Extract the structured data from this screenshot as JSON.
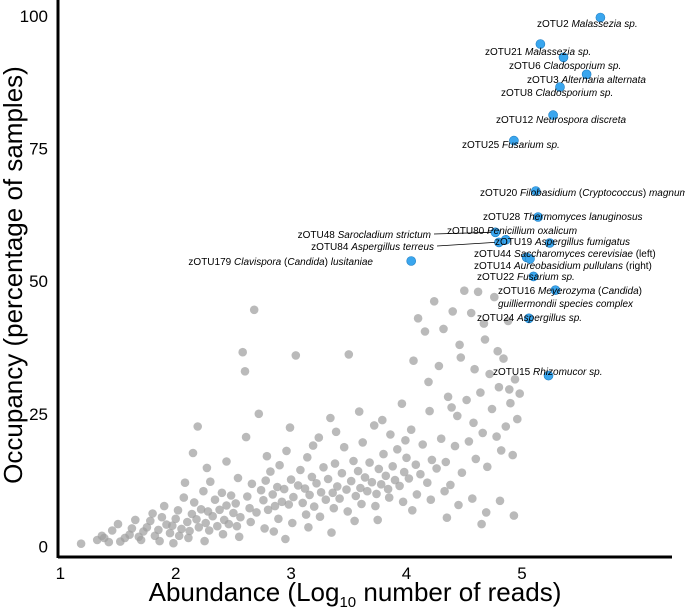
{
  "chart_data": {
    "type": "scatter",
    "xlabel": {
      "main": "Abundance (Log",
      "sub": "10",
      "rest": " number of reads)"
    },
    "ylabel": "Occupancy (percentage of samples)",
    "xlim": [
      0.98,
      6.3
    ],
    "ylim": [
      -2,
      103
    ],
    "x_ticks": [
      1,
      2,
      3,
      4,
      5
    ],
    "y_ticks": [
      0,
      25,
      50,
      75,
      100
    ],
    "colors": {
      "background_points": "#a0a0a0",
      "highlight_points": "#3aa6ee",
      "highlight_stroke": "#1f7fc4"
    },
    "background_points": [
      [
        1.18,
        0.5
      ],
      [
        1.32,
        1.2
      ],
      [
        1.36,
        2.0
      ],
      [
        1.38,
        1.6
      ],
      [
        1.45,
        3.0
      ],
      [
        1.5,
        4.2
      ],
      [
        1.52,
        0.9
      ],
      [
        1.56,
        1.6
      ],
      [
        1.6,
        2.2
      ],
      [
        1.62,
        3.4
      ],
      [
        1.65,
        5.0
      ],
      [
        1.68,
        1.8
      ],
      [
        1.72,
        2.8
      ],
      [
        1.75,
        3.6
      ],
      [
        1.78,
        4.8
      ],
      [
        1.8,
        6.2
      ],
      [
        1.82,
        2.0
      ],
      [
        1.85,
        3.1
      ],
      [
        1.88,
        5.5
      ],
      [
        1.9,
        7.6
      ],
      [
        1.92,
        4.1
      ],
      [
        1.95,
        2.5
      ],
      [
        1.97,
        3.9
      ],
      [
        2.0,
        5.2
      ],
      [
        2.02,
        6.8
      ],
      [
        2.05,
        3.3
      ],
      [
        2.07,
        9.2
      ],
      [
        2.1,
        4.6
      ],
      [
        2.12,
        2.9
      ],
      [
        2.14,
        6.1
      ],
      [
        2.16,
        8.3
      ],
      [
        2.18,
        5.1
      ],
      [
        2.2,
        3.6
      ],
      [
        2.22,
        7.0
      ],
      [
        2.24,
        10.4
      ],
      [
        2.26,
        4.4
      ],
      [
        2.28,
        6.6
      ],
      [
        2.3,
        12.2
      ],
      [
        2.32,
        5.7
      ],
      [
        2.34,
        8.8
      ],
      [
        2.36,
        3.8
      ],
      [
        2.38,
        6.9
      ],
      [
        2.4,
        10.1
      ],
      [
        2.42,
        5.0
      ],
      [
        2.44,
        7.7
      ],
      [
        2.46,
        4.2
      ],
      [
        2.48,
        9.6
      ],
      [
        2.5,
        6.3
      ],
      [
        2.52,
        8.1
      ],
      [
        2.54,
        12.9
      ],
      [
        2.56,
        5.5
      ],
      [
        2.58,
        36.6
      ],
      [
        2.6,
        33.0
      ],
      [
        2.62,
        9.4
      ],
      [
        2.64,
        7.2
      ],
      [
        2.66,
        11.8
      ],
      [
        2.68,
        44.6
      ],
      [
        2.7,
        6.4
      ],
      [
        2.72,
        25.0
      ],
      [
        2.74,
        10.6
      ],
      [
        2.76,
        8.7
      ],
      [
        2.78,
        12.4
      ],
      [
        2.8,
        6.9
      ],
      [
        2.82,
        14.1
      ],
      [
        2.84,
        9.8
      ],
      [
        2.86,
        7.6
      ],
      [
        2.88,
        11.2
      ],
      [
        2.9,
        15.3
      ],
      [
        2.92,
        8.4
      ],
      [
        2.94,
        10.8
      ],
      [
        2.96,
        18.0
      ],
      [
        2.98,
        7.9
      ],
      [
        3.0,
        12.6
      ],
      [
        3.02,
        9.3
      ],
      [
        3.04,
        36.0
      ],
      [
        3.06,
        11.5
      ],
      [
        3.08,
        14.4
      ],
      [
        3.1,
        8.2
      ],
      [
        3.12,
        10.9
      ],
      [
        3.14,
        16.8
      ],
      [
        3.16,
        9.7
      ],
      [
        3.18,
        13.1
      ],
      [
        3.2,
        7.5
      ],
      [
        3.22,
        11.9
      ],
      [
        3.24,
        20.5
      ],
      [
        3.26,
        10.2
      ],
      [
        3.28,
        14.9
      ],
      [
        3.3,
        8.8
      ],
      [
        3.32,
        12.7
      ],
      [
        3.34,
        24.2
      ],
      [
        3.36,
        10.1
      ],
      [
        3.38,
        15.6
      ],
      [
        3.4,
        11.3
      ],
      [
        3.42,
        9.0
      ],
      [
        3.44,
        13.8
      ],
      [
        3.46,
        18.7
      ],
      [
        3.48,
        10.7
      ],
      [
        3.5,
        36.2
      ],
      [
        3.52,
        12.3
      ],
      [
        3.54,
        16.1
      ],
      [
        3.56,
        9.5
      ],
      [
        3.58,
        14.2
      ],
      [
        3.6,
        11.0
      ],
      [
        3.62,
        19.6
      ],
      [
        3.64,
        13.0
      ],
      [
        3.66,
        10.4
      ],
      [
        3.68,
        15.8
      ],
      [
        3.7,
        12.1
      ],
      [
        3.72,
        22.8
      ],
      [
        3.74,
        9.9
      ],
      [
        3.76,
        14.6
      ],
      [
        3.78,
        11.7
      ],
      [
        3.8,
        17.4
      ],
      [
        3.82,
        13.3
      ],
      [
        3.84,
        10.8
      ],
      [
        3.86,
        21.1
      ],
      [
        3.88,
        15.1
      ],
      [
        3.9,
        12.5
      ],
      [
        3.92,
        18.3
      ],
      [
        3.94,
        11.4
      ],
      [
        3.96,
        26.9
      ],
      [
        3.98,
        14.0
      ],
      [
        4.0,
        16.7
      ],
      [
        4.02,
        12.8
      ],
      [
        4.04,
        22.0
      ],
      [
        4.06,
        35.0
      ],
      [
        4.08,
        15.4
      ],
      [
        4.1,
        43.0
      ],
      [
        4.12,
        13.6
      ],
      [
        4.14,
        19.2
      ],
      [
        4.16,
        40.5
      ],
      [
        4.18,
        12.0
      ],
      [
        4.2,
        25.5
      ],
      [
        4.22,
        16.3
      ],
      [
        4.24,
        46.2
      ],
      [
        4.26,
        14.7
      ],
      [
        4.28,
        34.0
      ],
      [
        4.3,
        20.3
      ],
      [
        4.32,
        41.0
      ],
      [
        4.34,
        15.9
      ],
      [
        4.36,
        28.2
      ],
      [
        4.38,
        11.6
      ],
      [
        4.4,
        44.3
      ],
      [
        4.42,
        18.9
      ],
      [
        4.44,
        24.6
      ],
      [
        4.46,
        38.0
      ],
      [
        4.48,
        13.9
      ],
      [
        4.5,
        48.2
      ],
      [
        4.52,
        27.6
      ],
      [
        4.54,
        19.8
      ],
      [
        4.56,
        44.0
      ],
      [
        4.58,
        23.3
      ],
      [
        4.6,
        16.5
      ],
      [
        4.62,
        48.0
      ],
      [
        4.64,
        29.0
      ],
      [
        4.66,
        21.4
      ],
      [
        4.68,
        39.0
      ],
      [
        4.7,
        15.0
      ],
      [
        4.72,
        32.5
      ],
      [
        4.74,
        25.9
      ],
      [
        4.76,
        47.0
      ],
      [
        4.78,
        20.7
      ],
      [
        4.8,
        30.0
      ],
      [
        4.82,
        18.1
      ],
      [
        4.84,
        35.4
      ],
      [
        4.86,
        22.6
      ],
      [
        4.88,
        42.5
      ],
      [
        4.9,
        27.0
      ],
      [
        4.92,
        17.2
      ],
      [
        4.94,
        31.5
      ],
      [
        4.96,
        24.0
      ],
      [
        4.98,
        28.8
      ],
      [
        1.42,
        0.8
      ],
      [
        1.7,
        1.2
      ],
      [
        1.86,
        1.0
      ],
      [
        2.03,
        2.0
      ],
      [
        2.11,
        1.6
      ],
      [
        2.29,
        3.0
      ],
      [
        2.41,
        2.3
      ],
      [
        2.53,
        3.8
      ],
      [
        2.65,
        4.6
      ],
      [
        2.77,
        3.4
      ],
      [
        2.89,
        5.2
      ],
      [
        3.01,
        4.4
      ],
      [
        3.13,
        6.0
      ],
      [
        3.25,
        5.6
      ],
      [
        3.37,
        7.2
      ],
      [
        3.49,
        6.6
      ],
      [
        3.61,
        8.0
      ],
      [
        3.73,
        7.6
      ],
      [
        3.85,
        9.2
      ],
      [
        3.97,
        8.4
      ],
      [
        4.09,
        9.8
      ],
      [
        4.21,
        8.8
      ],
      [
        4.33,
        10.4
      ],
      [
        4.45,
        7.8
      ],
      [
        4.57,
        9.0
      ],
      [
        4.69,
        6.4
      ],
      [
        4.81,
        8.6
      ],
      [
        4.93,
        5.8
      ],
      [
        3.55,
        4.8
      ],
      [
        3.15,
        3.6
      ],
      [
        2.85,
        2.8
      ],
      [
        2.55,
        1.8
      ],
      [
        4.05,
        6.8
      ],
      [
        4.35,
        5.4
      ],
      [
        4.65,
        4.2
      ],
      [
        3.75,
        5.0
      ],
      [
        3.35,
        2.6
      ],
      [
        2.95,
        1.4
      ],
      [
        2.25,
        1.0
      ],
      [
        1.98,
        0.6
      ],
      [
        2.08,
        12.0
      ],
      [
        2.15,
        17.6
      ],
      [
        2.19,
        22.6
      ],
      [
        2.27,
        14.8
      ],
      [
        2.44,
        16.0
      ],
      [
        2.61,
        20.6
      ],
      [
        2.79,
        17.0
      ],
      [
        2.99,
        22.4
      ],
      [
        3.19,
        19.0
      ],
      [
        3.39,
        21.6
      ],
      [
        3.59,
        25.4
      ],
      [
        3.79,
        23.8
      ],
      [
        3.99,
        20.0
      ],
      [
        4.19,
        31.0
      ],
      [
        4.39,
        26.2
      ],
      [
        4.59,
        33.4
      ],
      [
        4.79,
        36.8
      ],
      [
        4.89,
        29.6
      ],
      [
        4.67,
        42.0
      ],
      [
        4.47,
        35.6
      ]
    ],
    "highlight_points": [
      {
        "x": 5.68,
        "y": 99.7,
        "id": "zOTU2",
        "name": "Malassezia sp."
      },
      {
        "x": 5.16,
        "y": 94.7,
        "id": "zOTU21",
        "name": "Malassezia sp."
      },
      {
        "x": 5.36,
        "y": 92.2,
        "id": "zOTU6",
        "name": "Cladosporium sp."
      },
      {
        "x": 5.56,
        "y": 89.0,
        "id": "zOTU3",
        "name": "Alternaria alternata"
      },
      {
        "x": 5.33,
        "y": 86.6,
        "id": "zOTU8",
        "name": "Cladosporium sp."
      },
      {
        "x": 5.27,
        "y": 81.3,
        "id": "zOTU12",
        "name": "Neurospora discreta"
      },
      {
        "x": 4.93,
        "y": 76.5,
        "id": "zOTU25",
        "name": "Fusarium sp."
      },
      {
        "x": 5.12,
        "y": 67.0,
        "id": "zOTU20",
        "name": "Filobasidium (Cryptococcus) magnum"
      },
      {
        "x": 5.14,
        "y": 62.1,
        "id": "zOTU28",
        "name": "Thermomyces lanuginosus"
      },
      {
        "x": 4.77,
        "y": 59.2,
        "id": "zOTU48",
        "name": "Sarocladium strictum"
      },
      {
        "x": 4.86,
        "y": 57.8,
        "id": "zOTU80",
        "name": "Penicillium oxalicum"
      },
      {
        "x": 4.8,
        "y": 57.3,
        "id": "zOTU84",
        "name": "Aspergillus terreus"
      },
      {
        "x": 5.24,
        "y": 57.2,
        "id": "zOTU19",
        "name": "Aspergillus fumigatus"
      },
      {
        "x": 5.04,
        "y": 54.5,
        "id": "zOTU44",
        "name": "Saccharomyces cerevisiae (left)"
      },
      {
        "x": 5.07,
        "y": 54.2,
        "id": "zOTU14",
        "name": "Aureobasidium pullulans (right)"
      },
      {
        "x": 4.04,
        "y": 53.8,
        "id": "zOTU179",
        "name": "Clavispora (Candida) lusitaniae"
      },
      {
        "x": 5.1,
        "y": 50.9,
        "id": "zOTU22",
        "name": "Fusarium sp."
      },
      {
        "x": 5.29,
        "y": 48.3,
        "id": "zOTU16",
        "name": "Meyerozyma (Candida) guilliermondii species complex"
      },
      {
        "x": 5.06,
        "y": 43.0,
        "id": "zOTU24",
        "name": "Aspergillus sp."
      },
      {
        "x": 5.23,
        "y": 32.2,
        "id": "zOTU15",
        "name": "Rhizomucor sp."
      }
    ]
  },
  "labels": [
    {
      "text": [
        "zOTU2 ",
        {
          "i": "Malassezia sp."
        }
      ]
    },
    {
      "text": [
        "zOTU21 ",
        {
          "i": "Malassezia sp."
        }
      ]
    },
    {
      "text": [
        "zOTU6 ",
        {
          "i": "Cladosporium sp."
        }
      ]
    },
    {
      "text": [
        "zOTU3 ",
        {
          "i": "Alternaria alternata"
        }
      ]
    },
    {
      "text": [
        "zOTU8 ",
        {
          "i": "Cladosporium sp."
        }
      ]
    },
    {
      "text": [
        "zOTU12 ",
        {
          "i": "Neurospora discreta"
        }
      ]
    },
    {
      "text": [
        "zOTU25 ",
        {
          "i": "Fusarium sp."
        }
      ]
    },
    {
      "text": [
        "zOTU20 ",
        {
          "i": "Filobasidium"
        },
        " (",
        {
          "i": "Cryptococcus"
        },
        ") ",
        {
          "i": "magnum"
        }
      ]
    },
    {
      "text": [
        "zOTU28 ",
        {
          "i": "Thermomyces lanuginosus"
        }
      ]
    },
    {
      "text": [
        "zOTU48 ",
        {
          "i": "Sarocladium strictum"
        }
      ]
    },
    {
      "text": [
        "zOTU80 ",
        {
          "i": "Penicillium oxalicum"
        }
      ]
    },
    {
      "text": [
        "zOTU84 ",
        {
          "i": "Aspergillus terreus"
        }
      ]
    },
    {
      "text": [
        "zOTU19 ",
        {
          "i": "Aspergillus fumigatus"
        }
      ]
    },
    {
      "text": [
        "zOTU44 ",
        {
          "i": "Saccharomyces cerevisiae"
        },
        " (left)"
      ]
    },
    {
      "text": [
        "zOTU14 ",
        {
          "i": "Aureobasidium pullulans"
        },
        " (right)"
      ]
    },
    {
      "text": [
        "zOTU179 ",
        {
          "i": "Clavispora"
        },
        " (",
        {
          "i": "Candida"
        },
        ") ",
        {
          "i": "lusitaniae"
        }
      ]
    },
    {
      "text": [
        "zOTU22 ",
        {
          "i": "Fusarium sp."
        }
      ]
    },
    {
      "text": [
        "zOTU16 ",
        {
          "i": "Meyerozyma"
        },
        " (",
        {
          "i": "Candida"
        },
        ")"
      ]
    },
    {
      "text": [
        {
          "i": "guilliermondii species complex"
        }
      ]
    },
    {
      "text": [
        "zOTU24 ",
        {
          "i": "Aspergillus sp."
        }
      ]
    },
    {
      "text": [
        "zOTU15 ",
        {
          "i": "Rhizomucor sp."
        }
      ]
    }
  ]
}
